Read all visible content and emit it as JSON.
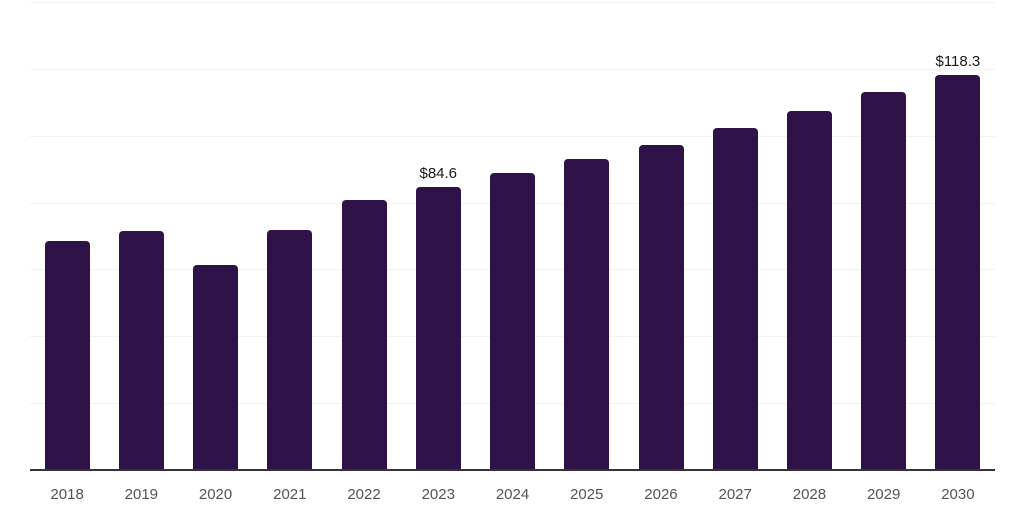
{
  "chart_data": {
    "type": "bar",
    "title": "",
    "xlabel": "",
    "ylabel": "",
    "categories": [
      "2018",
      "2019",
      "2020",
      "2021",
      "2022",
      "2023",
      "2024",
      "2025",
      "2026",
      "2027",
      "2028",
      "2029",
      "2030"
    ],
    "values": [
      68.4,
      71.4,
      61.2,
      71.7,
      80.9,
      84.6,
      88.8,
      93.0,
      97.2,
      102.2,
      107.3,
      113.0,
      118.3
    ],
    "value_labels": {
      "2023": "$84.6",
      "2030": "$118.3"
    },
    "ylim": [
      0,
      140
    ],
    "grid_step": 20,
    "grid": true,
    "legend_position": "none",
    "colors": {
      "bar": "#2f1247",
      "axis": "#37313f",
      "gridline": "#f2f1f3",
      "tick_label": "#55525a",
      "value_label": "#18181a",
      "background": "#ffffff"
    }
  }
}
